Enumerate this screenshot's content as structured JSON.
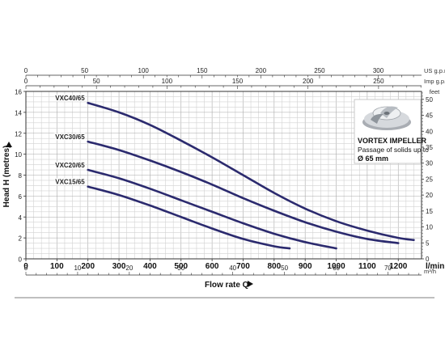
{
  "chart_data": {
    "type": "line",
    "ylabel": "Head H (metres)",
    "xlabel": "Flow rate Q",
    "x_unit": "l/min",
    "xlim": [
      0,
      1275
    ],
    "ylim": [
      0,
      16
    ],
    "x_ticks": [
      0,
      100,
      200,
      300,
      400,
      500,
      600,
      700,
      800,
      900,
      1000,
      1100,
      1200
    ],
    "y_ticks": [
      0,
      2,
      4,
      6,
      8,
      10,
      12,
      14,
      16
    ],
    "feet_axis": {
      "unit": "feet",
      "ticks": [
        0,
        5,
        10,
        15,
        20,
        25,
        30,
        35,
        40,
        45,
        50
      ]
    },
    "us_gpm_axis": {
      "unit": "US g.p.m.",
      "ticks": [
        0,
        50,
        100,
        150,
        200,
        250,
        300
      ]
    },
    "imp_gpm_axis": {
      "unit": "Imp g.p.m.",
      "ticks": [
        0,
        50,
        100,
        150,
        200,
        250
      ]
    },
    "m3h_axis": {
      "unit": "m³/h",
      "ticks": [
        0,
        10,
        20,
        30,
        40,
        50,
        60,
        70
      ]
    },
    "series": [
      {
        "name": "VXC40/65",
        "x": [
          200,
          300,
          400,
          500,
          600,
          700,
          800,
          900,
          1000,
          1100,
          1200,
          1250
        ],
        "y": [
          14.9,
          14.0,
          12.8,
          11.3,
          9.7,
          8.0,
          6.3,
          4.8,
          3.6,
          2.7,
          2.0,
          1.8
        ]
      },
      {
        "name": "VXC30/65",
        "x": [
          200,
          300,
          400,
          500,
          600,
          700,
          800,
          900,
          1000,
          1100,
          1200
        ],
        "y": [
          11.2,
          10.4,
          9.4,
          8.3,
          7.1,
          5.8,
          4.6,
          3.5,
          2.6,
          1.9,
          1.5
        ]
      },
      {
        "name": "VXC20/65",
        "x": [
          200,
          300,
          400,
          500,
          600,
          700,
          800,
          900,
          1000
        ],
        "y": [
          8.5,
          7.7,
          6.7,
          5.6,
          4.5,
          3.4,
          2.4,
          1.6,
          1.0
        ]
      },
      {
        "name": "VXC15/65",
        "x": [
          200,
          300,
          400,
          500,
          600,
          700,
          800,
          850
        ],
        "y": [
          6.9,
          6.1,
          5.1,
          4.0,
          2.9,
          1.9,
          1.2,
          1.0
        ]
      }
    ],
    "grid": true,
    "line_color": "#2b2a6e"
  },
  "inset": {
    "title": "VORTEX IMPELLER",
    "line1": "Passage of solids up to",
    "line2": "Ø 65 mm"
  }
}
